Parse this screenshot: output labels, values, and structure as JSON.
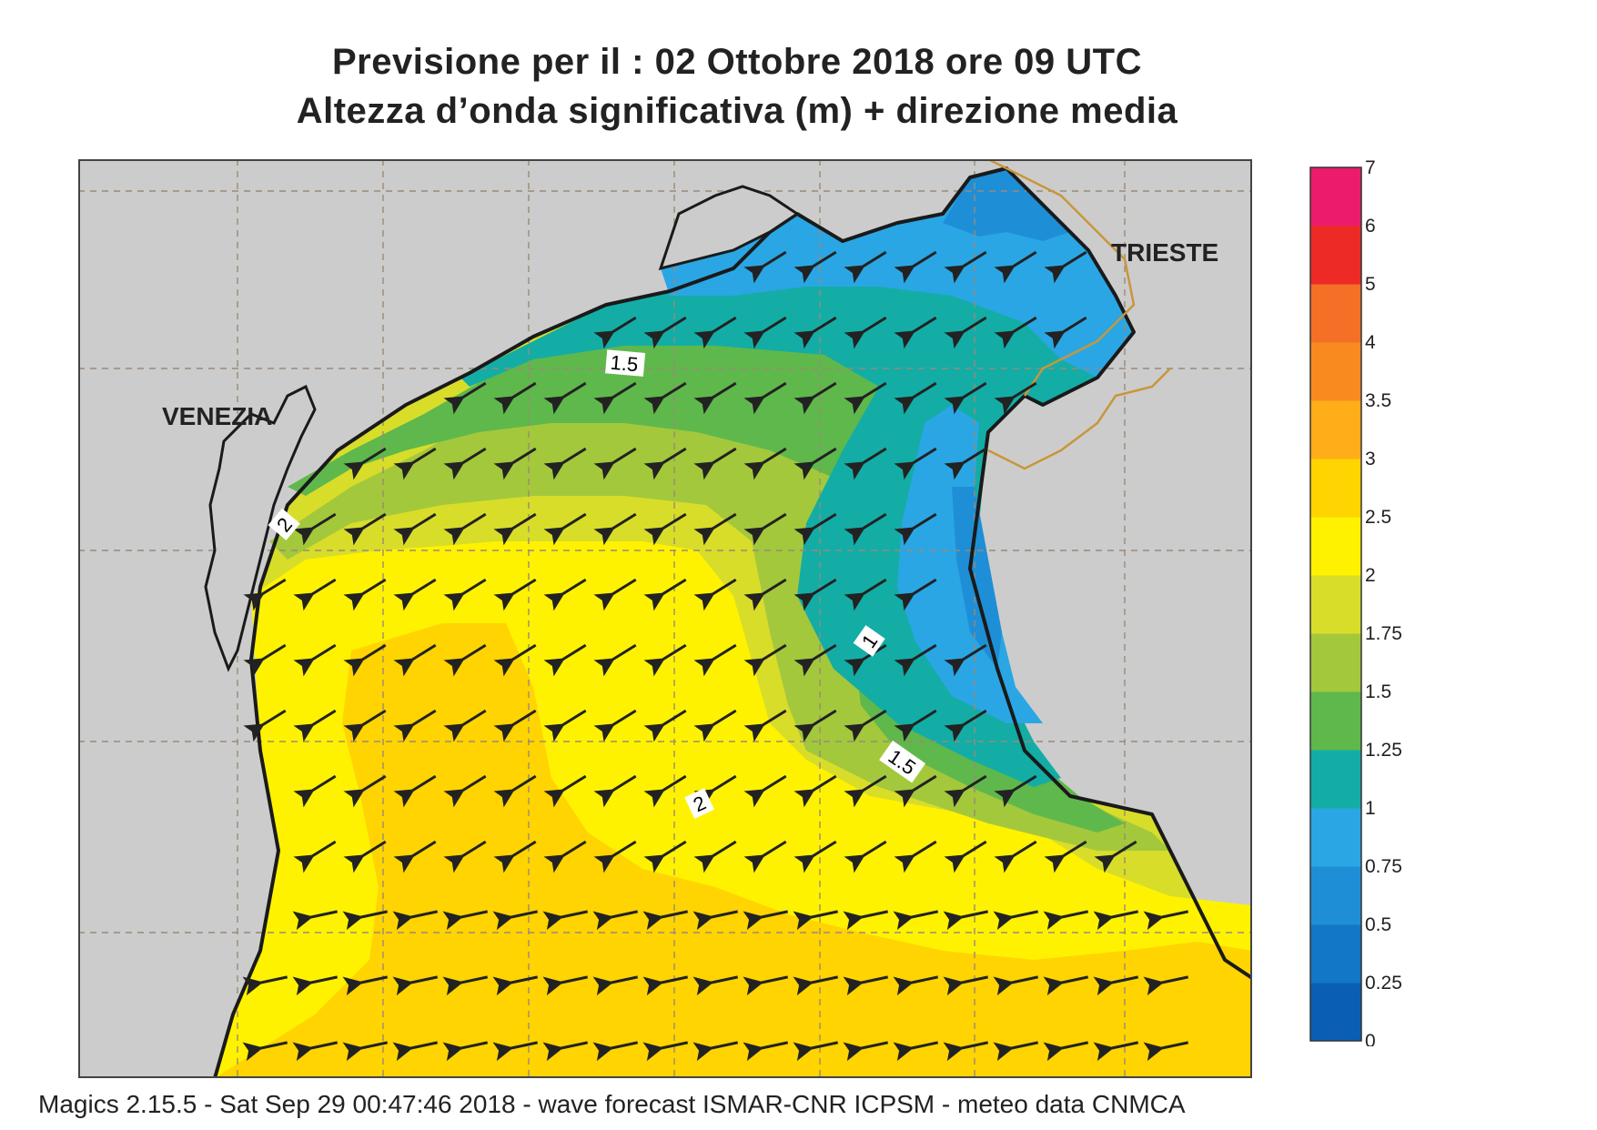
{
  "title": {
    "line1": "Previsione per il  :  02  Ottobre  2018   ore 09 UTC",
    "line2": "Altezza d’onda significativa (m) + direzione media"
  },
  "map": {
    "places": [
      {
        "name": "VENEZIA"
      },
      {
        "name": "TRIESTE"
      }
    ],
    "contour_labels": [
      "1.5",
      "2",
      "1",
      "1.5",
      "2"
    ],
    "colors": {
      "land": "#cccccc",
      "grid": "#9a8a78",
      "coast": "#1a1a1a",
      "border": "#c8963c",
      "arrow": "#222222"
    },
    "wave_direction": "south-west (toward)"
  },
  "legend": {
    "labels": [
      "0",
      "0.25",
      "0.5",
      "0.75",
      "1",
      "1.25",
      "1.5",
      "1.75",
      "2",
      "2.5",
      "3",
      "3.5",
      "4",
      "5",
      "6",
      "7"
    ],
    "colors": [
      "#0a5fb4",
      "#1177c6",
      "#1e8fd6",
      "#2aa6e4",
      "#13ada6",
      "#5fb84b",
      "#a3c83c",
      "#d8dd2a",
      "#fff200",
      "#ffd400",
      "#ffad19",
      "#f98a20",
      "#f56f26",
      "#ee2a27",
      "#ec1c6b"
    ]
  },
  "footer": "Magics 2.15.5 - Sat Sep 29 00:47:46 2018 - wave forecast  ISMAR-CNR  ICPSM - meteo data   CNMCA"
}
